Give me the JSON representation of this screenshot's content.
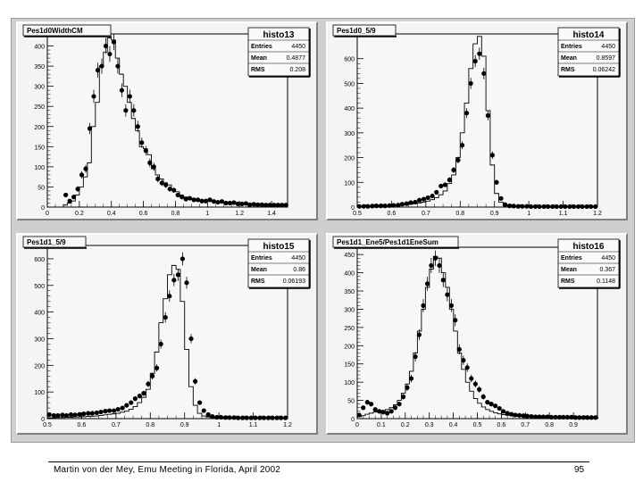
{
  "footer": {
    "text": "Martin von der Mey, Emu Meeting in Florida, April 2002",
    "page": "95"
  },
  "stats_labels": {
    "entries": "Entries",
    "mean": "Mean",
    "rms": "RMS"
  },
  "chart_data": [
    {
      "type": "histogram",
      "title": "Pes1d0WidthCM",
      "histo_name": "histo13",
      "stats": {
        "entries": "4450",
        "mean": "0.4877",
        "rms": "0.208"
      },
      "xlim": [
        0,
        1.5
      ],
      "ylim": [
        0,
        430
      ],
      "x_ticks": [
        0,
        0.2,
        0.4,
        0.6,
        0.8,
        1,
        1.2,
        1.4
      ],
      "x_tick_labels": [
        "0",
        "0.2",
        "0.4",
        "0.6",
        "0.8",
        "1",
        "1.2",
        "1.4"
      ],
      "y_ticks": [
        0,
        50,
        100,
        150,
        200,
        250,
        300,
        350,
        400
      ],
      "y_tick_labels": [
        "0",
        "50",
        "100",
        "150",
        "200",
        "250",
        "300",
        "350",
        "400"
      ],
      "hist_bin_width": 0.025,
      "hist_x_start": 0.1,
      "hist_values": [
        5,
        10,
        15,
        30,
        50,
        75,
        110,
        200,
        260,
        350,
        385,
        420,
        415,
        370,
        330,
        300,
        260,
        220,
        190,
        150,
        145,
        130,
        95,
        80,
        70,
        60,
        55,
        45,
        38,
        30,
        25,
        22,
        20,
        18,
        17,
        15,
        15,
        14,
        13,
        12,
        12,
        11,
        10,
        10,
        9,
        8,
        8,
        7,
        7,
        6,
        6,
        5,
        5,
        5,
        5,
        4
      ],
      "points_x": [
        0.115,
        0.14,
        0.165,
        0.19,
        0.215,
        0.24,
        0.265,
        0.29,
        0.315,
        0.34,
        0.365,
        0.39,
        0.415,
        0.44,
        0.465,
        0.49,
        0.515,
        0.54,
        0.565,
        0.59,
        0.615,
        0.64,
        0.665,
        0.69,
        0.715,
        0.74,
        0.765,
        0.79,
        0.815,
        0.84,
        0.865,
        0.89,
        0.915,
        0.94,
        0.965,
        0.99,
        1.015,
        1.04,
        1.065,
        1.09,
        1.115,
        1.14,
        1.165,
        1.19,
        1.215,
        1.24,
        1.265,
        1.29,
        1.315,
        1.34,
        1.365,
        1.39,
        1.415,
        1.44,
        1.465,
        1.49
      ],
      "points_y": [
        30,
        15,
        25,
        45,
        80,
        95,
        195,
        275,
        340,
        350,
        400,
        380,
        410,
        350,
        290,
        240,
        275,
        240,
        200,
        160,
        140,
        110,
        100,
        70,
        60,
        55,
        45,
        42,
        30,
        25,
        20,
        22,
        18,
        18,
        15,
        15,
        18,
        14,
        12,
        14,
        10,
        10,
        11,
        8,
        8,
        9,
        6,
        7,
        6,
        6,
        5,
        5,
        5,
        5,
        5,
        5
      ]
    },
    {
      "type": "histogram",
      "title": "Pes1d0_5/9",
      "histo_name": "histo14",
      "stats": {
        "entries": "4450",
        "mean": "0.8597",
        "rms": "0.06242"
      },
      "xlim": [
        0.5,
        1.2
      ],
      "ylim": [
        0,
        700
      ],
      "x_ticks": [
        0.5,
        0.6,
        0.7,
        0.8,
        0.9,
        1,
        1.1,
        1.2
      ],
      "x_tick_labels": [
        "0.5",
        "0.6",
        "0.7",
        "0.8",
        "0.9",
        "1",
        "1.1",
        "1.2"
      ],
      "y_ticks": [
        0,
        100,
        200,
        300,
        400,
        500,
        600
      ],
      "y_tick_labels": [
        "0",
        "100",
        "200",
        "300",
        "400",
        "500",
        "600"
      ],
      "hist_bin_width": 0.0125,
      "hist_x_start": 0.5,
      "hist_values": [
        2,
        2,
        3,
        3,
        4,
        4,
        5,
        5,
        6,
        7,
        8,
        10,
        12,
        14,
        16,
        20,
        24,
        30,
        38,
        50,
        65,
        95,
        130,
        200,
        300,
        420,
        560,
        660,
        690,
        610,
        390,
        170,
        55,
        20,
        8,
        5,
        4,
        3,
        3,
        2,
        2,
        2,
        2,
        2,
        2,
        2,
        2,
        2,
        2,
        2,
        2,
        2,
        2,
        2,
        2,
        2
      ],
      "points_x": [
        0.506,
        0.519,
        0.531,
        0.544,
        0.556,
        0.569,
        0.581,
        0.594,
        0.606,
        0.619,
        0.631,
        0.644,
        0.656,
        0.669,
        0.681,
        0.694,
        0.706,
        0.719,
        0.731,
        0.744,
        0.756,
        0.769,
        0.781,
        0.794,
        0.806,
        0.819,
        0.831,
        0.844,
        0.856,
        0.869,
        0.881,
        0.894,
        0.906,
        0.919,
        0.931,
        0.944,
        0.956,
        0.969,
        0.981,
        0.994,
        1.006,
        1.019,
        1.031,
        1.044,
        1.056,
        1.069,
        1.081,
        1.094,
        1.106,
        1.119,
        1.131,
        1.144,
        1.156,
        1.169,
        1.181,
        1.194
      ],
      "points_y": [
        3,
        3,
        3,
        4,
        5,
        5,
        5,
        6,
        7,
        8,
        12,
        14,
        18,
        20,
        28,
        32,
        38,
        45,
        60,
        85,
        90,
        110,
        150,
        190,
        250,
        380,
        500,
        590,
        620,
        540,
        370,
        210,
        100,
        35,
        10,
        5,
        4,
        3,
        3,
        3,
        2,
        2,
        2,
        2,
        2,
        2,
        2,
        2,
        2,
        2,
        2,
        2,
        2,
        2,
        2,
        2
      ]
    },
    {
      "type": "histogram",
      "title": "Pes1d1_5/9",
      "histo_name": "histo15",
      "stats": {
        "entries": "4450",
        "mean": "0.86",
        "rms": "0.06193"
      },
      "xlim": [
        0.5,
        1.2
      ],
      "ylim": [
        0,
        650
      ],
      "x_ticks": [
        0.5,
        0.6,
        0.7,
        0.8,
        0.9,
        1,
        1.1,
        1.2
      ],
      "x_tick_labels": [
        "0.5",
        "0.6",
        "0.7",
        "0.8",
        "0.9",
        "1",
        "1.1",
        "1.2"
      ],
      "y_ticks": [
        0,
        100,
        200,
        300,
        400,
        500,
        600
      ],
      "y_tick_labels": [
        "0",
        "100",
        "200",
        "300",
        "400",
        "500",
        "600"
      ],
      "hist_bin_width": 0.0125,
      "hist_x_start": 0.5,
      "hist_values": [
        3,
        3,
        4,
        4,
        5,
        5,
        6,
        6,
        7,
        8,
        9,
        10,
        12,
        14,
        16,
        18,
        20,
        24,
        28,
        35,
        45,
        60,
        80,
        110,
        170,
        250,
        360,
        450,
        540,
        575,
        560,
        440,
        260,
        120,
        50,
        20,
        10,
        6,
        5,
        4,
        4,
        3,
        3,
        3,
        3,
        3,
        3,
        3,
        3,
        3,
        3,
        3,
        3,
        3,
        3,
        3
      ],
      "points_x": [
        0.506,
        0.519,
        0.531,
        0.544,
        0.556,
        0.569,
        0.581,
        0.594,
        0.606,
        0.619,
        0.631,
        0.644,
        0.656,
        0.669,
        0.681,
        0.694,
        0.706,
        0.719,
        0.731,
        0.744,
        0.756,
        0.769,
        0.781,
        0.794,
        0.806,
        0.819,
        0.831,
        0.844,
        0.856,
        0.869,
        0.881,
        0.894,
        0.906,
        0.919,
        0.931,
        0.944,
        0.956,
        0.969,
        0.981,
        0.994,
        1.006,
        1.019,
        1.031,
        1.044,
        1.056,
        1.069,
        1.081,
        1.094,
        1.106,
        1.119,
        1.131,
        1.144,
        1.156,
        1.169,
        1.181,
        1.194
      ],
      "points_y": [
        15,
        12,
        12,
        14,
        12,
        15,
        14,
        16,
        18,
        20,
        20,
        22,
        25,
        28,
        30,
        30,
        35,
        40,
        50,
        60,
        75,
        85,
        95,
        130,
        160,
        190,
        280,
        380,
        460,
        520,
        540,
        600,
        510,
        300,
        140,
        60,
        30,
        15,
        8,
        5,
        5,
        4,
        4,
        4,
        3,
        3,
        3,
        3,
        3,
        3,
        3,
        3,
        3,
        3,
        3,
        3
      ]
    },
    {
      "type": "histogram",
      "title": "Pes1d1_Ene5/Pes1d1EneSum",
      "histo_name": "histo16",
      "stats": {
        "entries": "4450",
        "mean": "0.367",
        "rms": "0.1148"
      },
      "xlim": [
        0,
        1
      ],
      "ylim": [
        0,
        470
      ],
      "x_ticks": [
        0,
        0.1,
        0.2,
        0.3,
        0.4,
        0.5,
        0.6,
        0.7,
        0.8,
        0.9
      ],
      "x_tick_labels": [
        "0",
        "0.1",
        "0.2",
        "0.3",
        "0.4",
        "0.5",
        "0.6",
        "0.7",
        "0.8",
        "0.9"
      ],
      "y_ticks": [
        0,
        50,
        100,
        150,
        200,
        250,
        300,
        350,
        400,
        450
      ],
      "y_tick_labels": [
        "0",
        "50",
        "100",
        "150",
        "200",
        "250",
        "300",
        "350",
        "400",
        "450"
      ],
      "hist_bin_width": 0.0167,
      "hist_x_start": 0,
      "hist_values": [
        5,
        8,
        12,
        15,
        18,
        20,
        22,
        25,
        30,
        38,
        50,
        70,
        95,
        130,
        180,
        240,
        300,
        360,
        410,
        445,
        440,
        400,
        360,
        300,
        240,
        180,
        135,
        100,
        75,
        55,
        42,
        32,
        25,
        20,
        16,
        13,
        11,
        9,
        8,
        7,
        6,
        6,
        5,
        5,
        5,
        4,
        4,
        4,
        4,
        4,
        3,
        3,
        3,
        3,
        3,
        3,
        3,
        3,
        3,
        3
      ],
      "points_x": [
        0.008,
        0.025,
        0.042,
        0.058,
        0.075,
        0.092,
        0.108,
        0.125,
        0.142,
        0.158,
        0.175,
        0.192,
        0.208,
        0.225,
        0.242,
        0.258,
        0.275,
        0.292,
        0.308,
        0.325,
        0.342,
        0.358,
        0.375,
        0.392,
        0.408,
        0.425,
        0.442,
        0.458,
        0.475,
        0.492,
        0.508,
        0.525,
        0.542,
        0.558,
        0.575,
        0.592,
        0.608,
        0.625,
        0.642,
        0.658,
        0.675,
        0.692,
        0.708,
        0.725,
        0.742,
        0.758,
        0.775,
        0.792,
        0.808,
        0.825,
        0.842,
        0.858,
        0.875,
        0.892,
        0.908,
        0.925,
        0.942,
        0.958,
        0.975,
        0.992
      ],
      "points_y": [
        10,
        30,
        45,
        40,
        25,
        20,
        18,
        15,
        20,
        30,
        40,
        60,
        85,
        110,
        170,
        230,
        310,
        370,
        420,
        440,
        420,
        380,
        340,
        310,
        270,
        190,
        160,
        140,
        110,
        95,
        80,
        60,
        45,
        40,
        35,
        28,
        20,
        15,
        12,
        10,
        9,
        8,
        7,
        6,
        5,
        5,
        5,
        5,
        4,
        4,
        4,
        4,
        4,
        4,
        3,
        3,
        3,
        3,
        3,
        3
      ]
    }
  ]
}
